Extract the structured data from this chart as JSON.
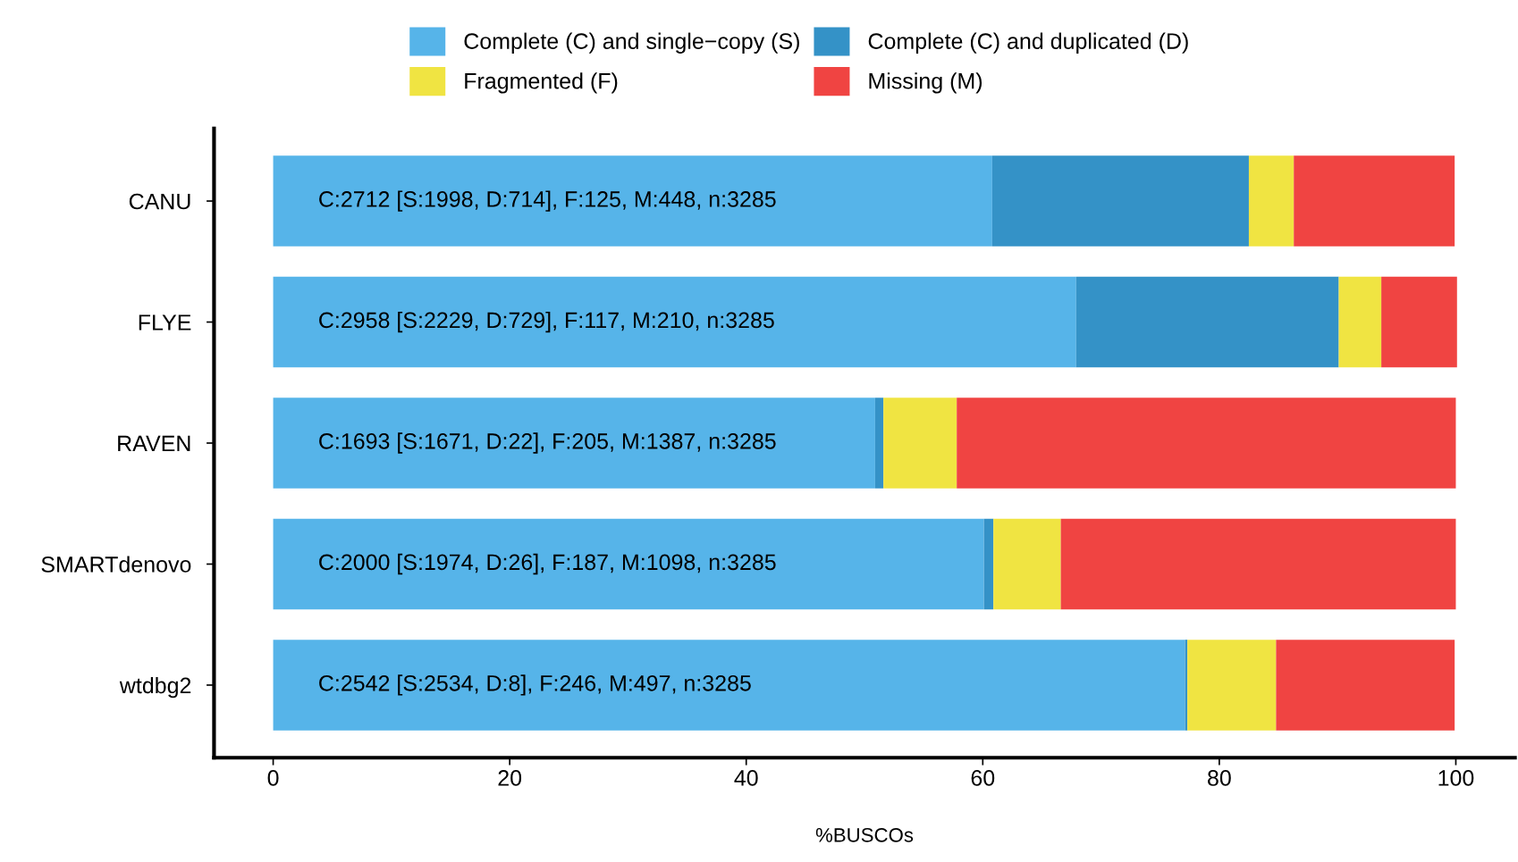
{
  "chart_data": {
    "type": "bar",
    "orientation": "horizontal",
    "stacked": true,
    "xlabel": "%BUSCOs",
    "categories": [
      "CANU",
      "FLYE",
      "RAVEN",
      "SMARTdenovo",
      "wtdbg2"
    ],
    "series": [
      {
        "name": "Complete (C) and single−copy (S)",
        "color": "#56b4e9",
        "values": [
          60.8,
          67.9,
          50.9,
          60.1,
          77.1
        ]
      },
      {
        "name": "Complete (C) and duplicated (D)",
        "color": "#3492c7",
        "values": [
          21.7,
          22.2,
          0.7,
          0.8,
          0.2
        ]
      },
      {
        "name": "Fragmented (F)",
        "color": "#f0e442",
        "values": [
          3.8,
          3.6,
          6.2,
          5.7,
          7.5
        ]
      },
      {
        "name": "Missing (M)",
        "color": "#f04442",
        "values": [
          13.6,
          6.4,
          42.2,
          33.4,
          15.1
        ]
      }
    ],
    "xlim": [
      -5,
      105
    ],
    "xticks": [
      0,
      20,
      40,
      60,
      80,
      100
    ],
    "grid": false,
    "legend": "top",
    "annotations": [
      "C:2712 [S:1998, D:714], F:125, M:448, n:3285",
      "C:2958 [S:2229, D:729], F:117, M:210, n:3285",
      "C:1693 [S:1671, D:22], F:205, M:1387, n:3285",
      "C:2000 [S:1974, D:26], F:187, M:1098, n:3285",
      "C:2542 [S:2534, D:8], F:246, M:497, n:3285"
    ]
  }
}
